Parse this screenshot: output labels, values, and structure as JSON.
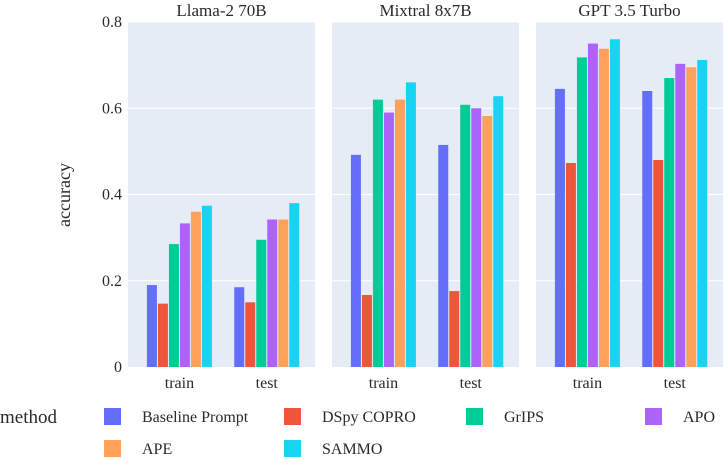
{
  "chart_data": {
    "type": "bar",
    "ylabel": "accuracy",
    "ylim": [
      0,
      0.8
    ],
    "yticks": [
      "0",
      "0.2",
      "0.4",
      "0.6",
      "0.8"
    ],
    "grid": true,
    "categories": [
      "train",
      "test"
    ],
    "series_names": [
      "Baseline Prompt",
      "DSpy COPRO",
      "GrIPS",
      "APO",
      "APE",
      "SAMMO"
    ],
    "series_colors": [
      "#636efa",
      "#ef553b",
      "#00cc96",
      "#ab63fa",
      "#ffa15a",
      "#19d3f3"
    ],
    "panels": [
      {
        "title": "Llama-2 70B",
        "series": [
          {
            "name": "Baseline Prompt",
            "values": [
              0.19,
              0.185
            ]
          },
          {
            "name": "DSpy COPRO",
            "values": [
              0.147,
              0.15
            ]
          },
          {
            "name": "GrIPS",
            "values": [
              0.285,
              0.295
            ]
          },
          {
            "name": "APO",
            "values": [
              0.333,
              0.342
            ]
          },
          {
            "name": "APE",
            "values": [
              0.36,
              0.342
            ]
          },
          {
            "name": "SAMMO",
            "values": [
              0.374,
              0.38
            ]
          }
        ]
      },
      {
        "title": "Mixtral 8x7B",
        "series": [
          {
            "name": "Baseline Prompt",
            "values": [
              0.492,
              0.515
            ]
          },
          {
            "name": "DSpy COPRO",
            "values": [
              0.167,
              0.176
            ]
          },
          {
            "name": "GrIPS",
            "values": [
              0.62,
              0.608
            ]
          },
          {
            "name": "APO",
            "values": [
              0.59,
              0.6
            ]
          },
          {
            "name": "APE",
            "values": [
              0.62,
              0.582
            ]
          },
          {
            "name": "SAMMO",
            "values": [
              0.66,
              0.628
            ]
          }
        ]
      },
      {
        "title": "GPT 3.5 Turbo",
        "series": [
          {
            "name": "Baseline Prompt",
            "values": [
              0.645,
              0.64
            ]
          },
          {
            "name": "DSpy COPRO",
            "values": [
              0.473,
              0.48
            ]
          },
          {
            "name": "GrIPS",
            "values": [
              0.718,
              0.67
            ]
          },
          {
            "name": "APO",
            "values": [
              0.75,
              0.703
            ]
          },
          {
            "name": "APE",
            "values": [
              0.738,
              0.695
            ]
          },
          {
            "name": "SAMMO",
            "values": [
              0.76,
              0.712
            ]
          }
        ]
      }
    ],
    "legend": {
      "title": "method",
      "placement": "bottom",
      "entries": [
        "Baseline Prompt",
        "DSpy COPRO",
        "GrIPS",
        "APO",
        "APE",
        "SAMMO"
      ]
    }
  }
}
